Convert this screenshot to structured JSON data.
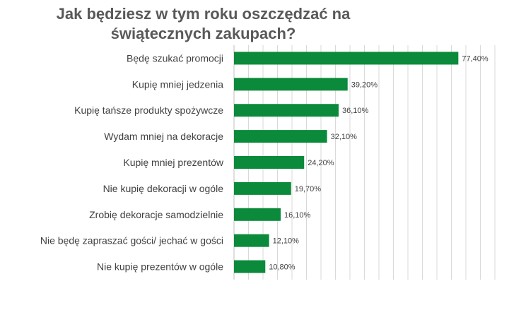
{
  "chart_data": {
    "type": "bar",
    "orientation": "horizontal",
    "title_lines": [
      "Jak będziesz w tym roku oszczędzać na",
      "świątecznych zakupach?"
    ],
    "categories": [
      "Będę szukać promocji",
      "Kupię mniej jedzenia",
      "Kupię tańsze produkty spożywcze",
      "Wydam mniej na dekoracje",
      "Kupię mniej prezentów",
      "Nie kupię dekoracji w ogóle",
      "Zrobię dekoracje samodzielnie",
      "Nie będę zapraszać gości/ jechać w gości",
      "Nie kupię prezentów w ogóle"
    ],
    "values": [
      77.4,
      39.2,
      36.1,
      32.1,
      24.2,
      19.7,
      16.1,
      12.1,
      10.8
    ],
    "value_labels": [
      "77,40%",
      "39,20%",
      "36,10%",
      "32,10%",
      "24,20%",
      "19,70%",
      "16,10%",
      "12,10%",
      "10,80%"
    ],
    "xlim": [
      0,
      90
    ],
    "grid": true,
    "bar_color": "#0a8a3a",
    "grid_color": "#d9d9d9"
  }
}
